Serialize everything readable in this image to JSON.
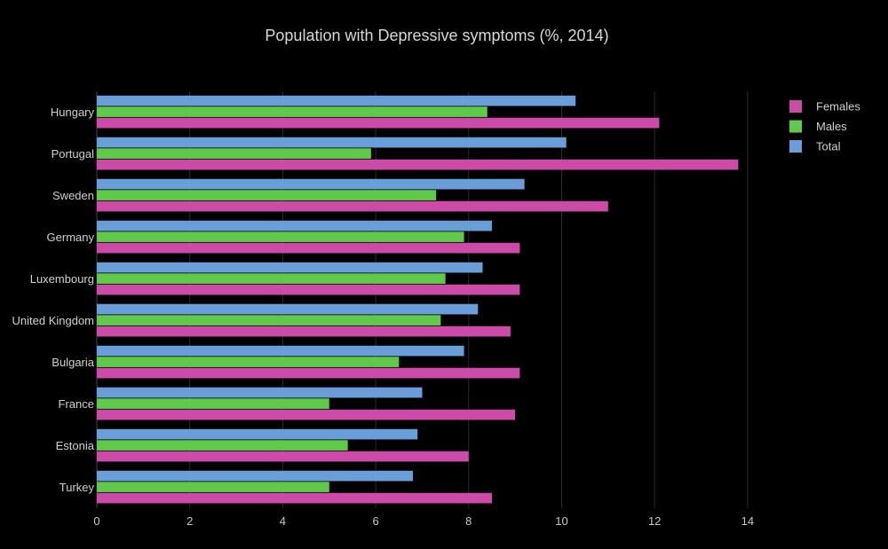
{
  "chart_data": {
    "type": "bar",
    "orientation": "horizontal",
    "title": "Population with Depressive symptoms (%, 2014)",
    "xlabel": "",
    "ylabel": "",
    "xlim": [
      0,
      14.9
    ],
    "xticks": [
      0,
      2,
      4,
      6,
      8,
      10,
      12,
      14
    ],
    "grid": true,
    "legend_position": "top-right",
    "categories": [
      "Hungary",
      "Portugal",
      "Sweden",
      "Germany",
      "Luxembourg",
      "United Kingdom",
      "Bulgaria",
      "France",
      "Estonia",
      "Turkey"
    ],
    "series": [
      {
        "name": "Females",
        "color": "#cc4aa8",
        "values": [
          12.1,
          13.8,
          11.0,
          9.1,
          9.1,
          8.9,
          9.1,
          9.0,
          8.0,
          8.5
        ]
      },
      {
        "name": "Males",
        "color": "#5fc94a",
        "values": [
          8.4,
          5.9,
          7.3,
          7.9,
          7.5,
          7.4,
          6.5,
          5.0,
          5.4,
          5.0
        ]
      },
      {
        "name": "Total",
        "color": "#6a9ed8",
        "values": [
          10.3,
          10.1,
          9.2,
          8.5,
          8.3,
          8.2,
          7.9,
          7.0,
          6.9,
          6.8
        ]
      }
    ]
  }
}
